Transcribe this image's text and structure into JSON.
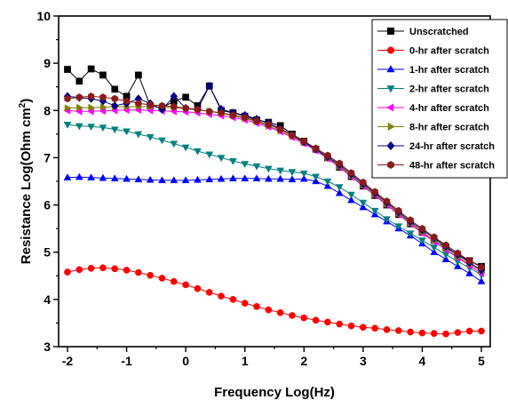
{
  "chart_data": {
    "type": "scatter",
    "title": "",
    "xlabel": "Frequency Log(Hz)",
    "ylabel_prefix": "Resistance Log(Ohm cm",
    "ylabel_sup": "2",
    "ylabel_suffix": ")",
    "xlim": [
      -2.15,
      5.15
    ],
    "ylim": [
      3,
      10
    ],
    "xticks": [
      -2,
      -1,
      0,
      1,
      2,
      3,
      4,
      5
    ],
    "xtick_labels": [
      "-2",
      "-1",
      "0",
      "1",
      "2",
      "3",
      "4",
      "5"
    ],
    "yticks": [
      3,
      4,
      5,
      6,
      7,
      8,
      9,
      10
    ],
    "ytick_labels": [
      "3",
      "4",
      "5",
      "6",
      "7",
      "8",
      "9",
      "10"
    ],
    "legend_position": "top-right",
    "grid": false,
    "series": [
      {
        "name": "Unscratched",
        "color": "#000000",
        "marker": "square",
        "x": [
          -2.0,
          -1.8,
          -1.6,
          -1.4,
          -1.2,
          -1.0,
          -0.8,
          -0.6,
          -0.4,
          -0.2,
          0.0,
          0.2,
          0.4,
          0.6,
          0.8,
          1.0,
          1.2,
          1.4,
          1.6,
          1.8,
          2.0,
          2.2,
          2.4,
          2.6,
          2.8,
          3.0,
          3.2,
          3.4,
          3.6,
          3.8,
          4.0,
          4.2,
          4.4,
          4.6,
          4.8,
          5.0
        ],
        "y": [
          8.87,
          8.62,
          8.88,
          8.75,
          8.45,
          8.3,
          8.75,
          8.1,
          8.05,
          8.2,
          8.28,
          8.1,
          8.52,
          8.0,
          7.95,
          7.88,
          7.8,
          7.75,
          7.68,
          7.5,
          7.35,
          7.18,
          7.0,
          6.8,
          6.6,
          6.4,
          6.2,
          6.0,
          5.8,
          5.6,
          5.42,
          5.25,
          5.1,
          4.95,
          4.82,
          4.7
        ]
      },
      {
        "name": "0-hr after scratch",
        "color": "#ff0000",
        "marker": "circle",
        "x": [
          -2.0,
          -1.8,
          -1.6,
          -1.4,
          -1.2,
          -1.0,
          -0.8,
          -0.6,
          -0.4,
          -0.2,
          0.0,
          0.2,
          0.4,
          0.6,
          0.8,
          1.0,
          1.2,
          1.4,
          1.6,
          1.8,
          2.0,
          2.2,
          2.4,
          2.6,
          2.8,
          3.0,
          3.2,
          3.4,
          3.6,
          3.8,
          4.0,
          4.2,
          4.4,
          4.6,
          4.8,
          5.0
        ],
        "y": [
          4.58,
          4.63,
          4.66,
          4.67,
          4.65,
          4.62,
          4.57,
          4.51,
          4.45,
          4.38,
          4.31,
          4.23,
          4.15,
          4.07,
          4.0,
          3.92,
          3.85,
          3.78,
          3.72,
          3.66,
          3.61,
          3.56,
          3.52,
          3.48,
          3.44,
          3.41,
          3.39,
          3.36,
          3.34,
          3.31,
          3.29,
          3.28,
          3.27,
          3.3,
          3.33,
          3.33
        ]
      },
      {
        "name": "1-hr after scratch",
        "color": "#0000ff",
        "marker": "triangle-up",
        "x": [
          -2.0,
          -1.8,
          -1.6,
          -1.4,
          -1.2,
          -1.0,
          -0.8,
          -0.6,
          -0.4,
          -0.2,
          0.0,
          0.2,
          0.4,
          0.6,
          0.8,
          1.0,
          1.2,
          1.4,
          1.6,
          1.8,
          2.0,
          2.2,
          2.4,
          2.6,
          2.8,
          3.0,
          3.2,
          3.4,
          3.6,
          3.8,
          4.0,
          4.2,
          4.4,
          4.6,
          4.8,
          5.0
        ],
        "y": [
          6.58,
          6.59,
          6.58,
          6.57,
          6.56,
          6.55,
          6.54,
          6.53,
          6.52,
          6.52,
          6.52,
          6.53,
          6.54,
          6.55,
          6.56,
          6.56,
          6.56,
          6.55,
          6.55,
          6.54,
          6.55,
          6.5,
          6.4,
          6.25,
          6.1,
          5.95,
          5.8,
          5.65,
          5.5,
          5.35,
          5.18,
          5.0,
          4.85,
          4.7,
          4.55,
          4.38
        ]
      },
      {
        "name": "2-hr after scratch",
        "color": "#00807f",
        "marker": "triangle-down",
        "x": [
          -2.0,
          -1.8,
          -1.6,
          -1.4,
          -1.2,
          -1.0,
          -0.8,
          -0.6,
          -0.4,
          -0.2,
          0.0,
          0.2,
          0.4,
          0.6,
          0.8,
          1.0,
          1.2,
          1.4,
          1.6,
          1.8,
          2.0,
          2.2,
          2.4,
          2.6,
          2.8,
          3.0,
          3.2,
          3.4,
          3.6,
          3.8,
          4.0,
          4.2,
          4.4,
          4.6,
          4.8,
          5.0
        ],
        "y": [
          7.7,
          7.67,
          7.66,
          7.64,
          7.6,
          7.56,
          7.5,
          7.44,
          7.37,
          7.3,
          7.22,
          7.14,
          7.07,
          7.0,
          6.93,
          6.87,
          6.82,
          6.77,
          6.73,
          6.7,
          6.67,
          6.6,
          6.5,
          6.38,
          6.22,
          6.05,
          5.88,
          5.7,
          5.55,
          5.4,
          5.25,
          5.1,
          4.95,
          4.8,
          4.67,
          4.52
        ]
      },
      {
        "name": "4-hr after scratch",
        "color": "#ff00ff",
        "marker": "triangle-left",
        "x": [
          -2.0,
          -1.8,
          -1.6,
          -1.4,
          -1.2,
          -1.0,
          -0.8,
          -0.6,
          -0.4,
          -0.2,
          0.0,
          0.2,
          0.4,
          0.6,
          0.8,
          1.0,
          1.2,
          1.4,
          1.6,
          1.8,
          2.0,
          2.2,
          2.4,
          2.6,
          2.8,
          3.0,
          3.2,
          3.4,
          3.6,
          3.8,
          4.0,
          4.2,
          4.4,
          4.6,
          4.8,
          5.0
        ],
        "y": [
          8.0,
          7.98,
          7.98,
          7.99,
          8.0,
          8.01,
          8.01,
          8.0,
          7.99,
          7.98,
          7.97,
          7.95,
          7.92,
          7.89,
          7.85,
          7.8,
          7.73,
          7.65,
          7.55,
          7.43,
          7.3,
          7.15,
          6.98,
          6.8,
          6.6,
          6.4,
          6.2,
          6.0,
          5.8,
          5.6,
          5.4,
          5.22,
          5.05,
          4.88,
          4.72,
          4.55
        ]
      },
      {
        "name": "8-hr after scratch",
        "color": "#808000",
        "marker": "triangle-right",
        "x": [
          -2.0,
          -1.8,
          -1.6,
          -1.4,
          -1.2,
          -1.0,
          -0.8,
          -0.6,
          -0.4,
          -0.2,
          0.0,
          0.2,
          0.4,
          0.6,
          0.8,
          1.0,
          1.2,
          1.4,
          1.6,
          1.8,
          2.0,
          2.2,
          2.4,
          2.6,
          2.8,
          3.0,
          3.2,
          3.4,
          3.6,
          3.8,
          4.0,
          4.2,
          4.4,
          4.6,
          4.8,
          5.0
        ],
        "y": [
          8.05,
          8.06,
          8.06,
          8.07,
          8.08,
          8.08,
          8.08,
          8.08,
          8.07,
          8.06,
          8.04,
          8.01,
          7.98,
          7.94,
          7.89,
          7.83,
          7.76,
          7.67,
          7.57,
          7.45,
          7.32,
          7.17,
          7.0,
          6.82,
          6.62,
          6.42,
          6.22,
          6.02,
          5.82,
          5.62,
          5.43,
          5.25,
          5.08,
          4.9,
          4.75,
          4.6
        ]
      },
      {
        "name": "24-hr after scratch",
        "color": "#000080",
        "marker": "diamond",
        "x": [
          -2.0,
          -1.8,
          -1.6,
          -1.4,
          -1.2,
          -1.0,
          -0.8,
          -0.6,
          -0.4,
          -0.2,
          0.0,
          0.2,
          0.4,
          0.6,
          0.8,
          1.0,
          1.2,
          1.4,
          1.6,
          1.8,
          2.0,
          2.2,
          2.4,
          2.6,
          2.8,
          3.0,
          3.2,
          3.4,
          3.6,
          3.8,
          4.0,
          4.2,
          4.4,
          4.6,
          4.8,
          5.0
        ],
        "y": [
          8.3,
          8.27,
          8.25,
          8.2,
          8.1,
          8.15,
          8.25,
          8.15,
          8.02,
          8.3,
          8.05,
          8.02,
          8.52,
          8.03,
          7.95,
          7.9,
          7.82,
          7.73,
          7.62,
          7.48,
          7.33,
          7.18,
          7.02,
          6.85,
          6.65,
          6.45,
          6.25,
          6.05,
          5.85,
          5.65,
          5.47,
          5.3,
          5.12,
          4.95,
          4.78,
          4.62
        ]
      },
      {
        "name": "48-hr after scratch",
        "color": "#8b1a1a",
        "marker": "hexagon",
        "x": [
          -2.0,
          -1.8,
          -1.6,
          -1.4,
          -1.2,
          -1.0,
          -0.8,
          -0.6,
          -0.4,
          -0.2,
          0.0,
          0.2,
          0.4,
          0.6,
          0.8,
          1.0,
          1.2,
          1.4,
          1.6,
          1.8,
          2.0,
          2.2,
          2.4,
          2.6,
          2.8,
          3.0,
          3.2,
          3.4,
          3.6,
          3.8,
          4.0,
          4.2,
          4.4,
          4.6,
          4.8,
          5.0
        ],
        "y": [
          8.25,
          8.28,
          8.3,
          8.28,
          8.25,
          8.2,
          8.15,
          8.12,
          8.1,
          8.08,
          8.05,
          8.02,
          7.98,
          7.95,
          7.9,
          7.85,
          7.78,
          7.7,
          7.6,
          7.48,
          7.35,
          7.2,
          7.05,
          6.88,
          6.68,
          6.48,
          6.28,
          6.08,
          5.88,
          5.68,
          5.5,
          5.32,
          5.15,
          4.98,
          4.82,
          4.68
        ]
      }
    ]
  }
}
